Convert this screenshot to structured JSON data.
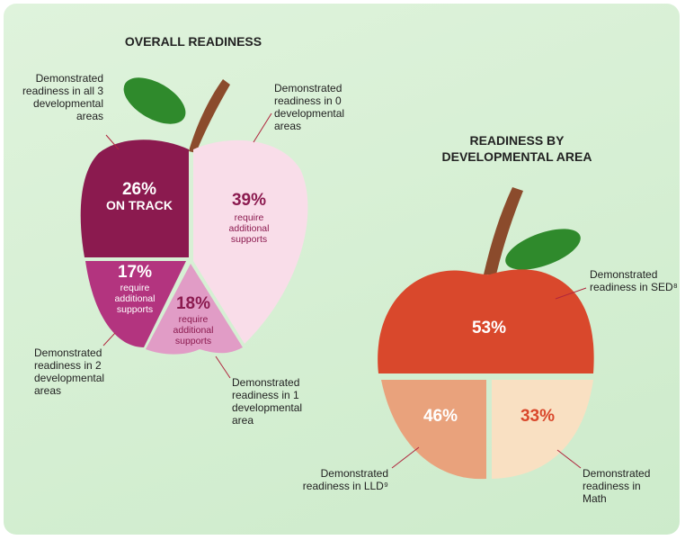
{
  "chart_data": [
    {
      "type": "pie",
      "title": "OVERALL READINESS",
      "categories": [
        "Demonstrated readiness in all 3 developmental areas",
        "Demonstrated readiness in 0 developmental areas",
        "Demonstrated readiness in 2 developmental areas",
        "Demonstrated readiness in 1 developmental area"
      ],
      "values": [
        26,
        39,
        17,
        18
      ],
      "value_labels": [
        "26%",
        "39%",
        "17%",
        "18%"
      ],
      "notes": [
        "ON TRACK",
        "require additional supports",
        "require additional supports",
        "require additional supports"
      ],
      "colors": [
        "#8b1a4f",
        "#f9dde9",
        "#b3347f",
        "#e19cc6"
      ],
      "label_colors": [
        "#ffffff",
        "#8b1a4f",
        "#ffffff",
        "#8b1a4f"
      ]
    },
    {
      "type": "apple",
      "title": "READINESS BY DEVELOPMENTAL AREA",
      "categories": [
        "Demonstrated readiness in SED⁸",
        "Demonstrated readiness in LLD⁹",
        "Demonstrated readiness in Math"
      ],
      "values": [
        53,
        46,
        33
      ],
      "value_labels": [
        "53%",
        "46%",
        "33%"
      ],
      "colors": [
        "#d9482c",
        "#e9a27c",
        "#f9e0c2"
      ],
      "label_colors": [
        "#ffffff",
        "#ffffff",
        "#d9482c"
      ]
    }
  ]
}
